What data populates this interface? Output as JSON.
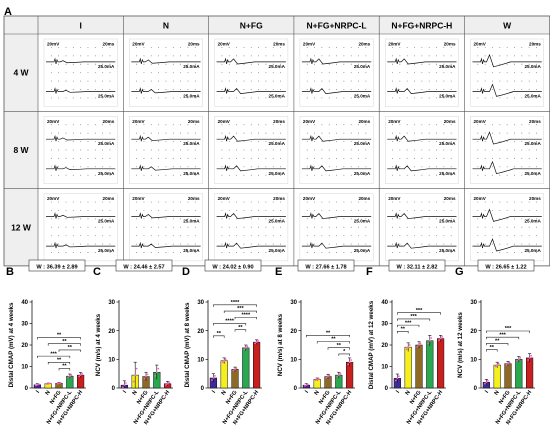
{
  "panel_a": {
    "letter": "A",
    "columns": [
      "I",
      "N",
      "N+FG",
      "N+FG+NRPC-L",
      "N+FG+NRPC-H",
      "W"
    ],
    "rows": [
      "4 W",
      "8 W",
      "12 W"
    ],
    "trace_labels": {
      "voltage": "20mV",
      "time": "20ms",
      "current": "25.0mA"
    }
  },
  "chart_data": [
    {
      "letter": "B",
      "type": "bar",
      "categories": [
        "I",
        "N",
        "N+FG",
        "N+FG+NRPC-L",
        "N+FG+NRPC-H"
      ],
      "values": [
        1.5,
        2.0,
        2.2,
        5.5,
        6.0
      ],
      "errors": [
        0.5,
        0.3,
        0.4,
        1.0,
        1.2
      ],
      "ylabel": "Distal CMAP (mV) at 4 weeks",
      "ylim": [
        0,
        40
      ],
      "yticks": [
        0,
        10,
        20,
        30,
        40
      ],
      "reference_label": "W : 36.39 ± 2.89",
      "significance": [
        {
          "from": 0,
          "to": 4,
          "label": "**"
        },
        {
          "from": 1,
          "to": 4,
          "label": "**"
        },
        {
          "from": 2,
          "to": 4,
          "label": "**"
        },
        {
          "from": 0,
          "to": 3,
          "label": "***"
        },
        {
          "from": 1,
          "to": 3,
          "label": "**"
        },
        {
          "from": 2,
          "to": 3,
          "label": "**"
        }
      ]
    },
    {
      "letter": "C",
      "type": "bar",
      "categories": [
        "I",
        "N",
        "N+FG",
        "N+FG+NRPC-L",
        "N+FG+NRPC-H"
      ],
      "values": [
        1.0,
        4.5,
        4.0,
        5.5,
        1.5
      ],
      "errors": [
        1.5,
        4.5,
        1.5,
        2.5,
        0.8
      ],
      "ylabel": "NCV (m/s) at 4 weeks",
      "ylim": [
        0,
        30
      ],
      "yticks": [
        0,
        10,
        20,
        30
      ],
      "reference_label": "W : 24.46 ± 2.57",
      "significance": []
    },
    {
      "letter": "D",
      "type": "bar",
      "categories": [
        "I",
        "N",
        "N+FG",
        "N+FG+NRPC-L",
        "N+FG+NRPC-H"
      ],
      "values": [
        3.5,
        9.5,
        6.5,
        14.0,
        16.0
      ],
      "errors": [
        1.5,
        1.0,
        0.8,
        1.0,
        0.8
      ],
      "ylabel": "Distal CMAP (mV) at 8 weeks",
      "ylim": [
        0,
        30
      ],
      "yticks": [
        0,
        10,
        20,
        30
      ],
      "reference_label": "W : 24.02 ± 0.90",
      "significance": [
        {
          "from": 0,
          "to": 4,
          "label": "****"
        },
        {
          "from": 1,
          "to": 4,
          "label": "***"
        },
        {
          "from": 2,
          "to": 4,
          "label": "****"
        },
        {
          "from": 0,
          "to": 3,
          "label": "****"
        },
        {
          "from": 2,
          "to": 3,
          "label": "**"
        },
        {
          "from": 0,
          "to": 1,
          "label": "**"
        }
      ]
    },
    {
      "letter": "E",
      "type": "bar",
      "categories": [
        "I",
        "N",
        "N+FG",
        "N+FG+NRPC-L",
        "N+FG+NRPC-H"
      ],
      "values": [
        1.0,
        3.0,
        4.0,
        4.5,
        9.0
      ],
      "errors": [
        0.5,
        0.5,
        0.8,
        1.0,
        1.5
      ],
      "ylabel": "NCV (m/s) at 8 weeks",
      "ylim": [
        0,
        30
      ],
      "yticks": [
        0,
        10,
        20,
        30
      ],
      "reference_label": "W : 27.66 ± 1.78",
      "significance": [
        {
          "from": 0,
          "to": 4,
          "label": "**"
        },
        {
          "from": 1,
          "to": 4,
          "label": "**"
        },
        {
          "from": 2,
          "to": 4,
          "label": "**"
        },
        {
          "from": 3,
          "to": 4,
          "label": "*"
        }
      ]
    },
    {
      "letter": "F",
      "type": "bar",
      "categories": [
        "I",
        "N",
        "N+FG",
        "N+FG+NRPC-L",
        "N+FG+NRPC-H"
      ],
      "values": [
        4.5,
        19.0,
        20.0,
        22.0,
        23.0
      ],
      "errors": [
        2.0,
        2.0,
        1.5,
        2.5,
        1.5
      ],
      "ylabel": "Distal CMAP (mV) at 12 weeks",
      "ylim": [
        0,
        40
      ],
      "yticks": [
        0,
        10,
        20,
        30,
        40
      ],
      "reference_label": "W : 32.11 ± 2.82",
      "significance": [
        {
          "from": 0,
          "to": 4,
          "label": "***"
        },
        {
          "from": 0,
          "to": 3,
          "label": "***"
        },
        {
          "from": 0,
          "to": 2,
          "label": "***"
        },
        {
          "from": 0,
          "to": 1,
          "label": "**"
        }
      ]
    },
    {
      "letter": "G",
      "type": "bar",
      "categories": [
        "I",
        "N",
        "N+FG",
        "N+FG+NRPC-L",
        "N+FG+NRPC-H"
      ],
      "values": [
        2.0,
        8.0,
        8.5,
        10.0,
        10.5
      ],
      "errors": [
        1.0,
        1.0,
        0.8,
        1.0,
        1.5
      ],
      "ylabel": "NCV (m/s) at 12 weeks",
      "ylim": [
        0,
        30
      ],
      "yticks": [
        0,
        10,
        20,
        30
      ],
      "reference_label": "W : 26.65 ± 1.22",
      "significance": [
        {
          "from": 0,
          "to": 4,
          "label": "***"
        },
        {
          "from": 0,
          "to": 3,
          "label": "***"
        },
        {
          "from": 0,
          "to": 2,
          "label": "**"
        },
        {
          "from": 0,
          "to": 1,
          "label": "**"
        }
      ]
    }
  ],
  "colors": {
    "bars": [
      "#3f2a98",
      "#f4ef1d",
      "#8f6a24",
      "#2aa84f",
      "#c81f1f"
    ],
    "scatter": "#ff5ccd",
    "sig": "#222222",
    "grid": "#7a7a7a"
  }
}
